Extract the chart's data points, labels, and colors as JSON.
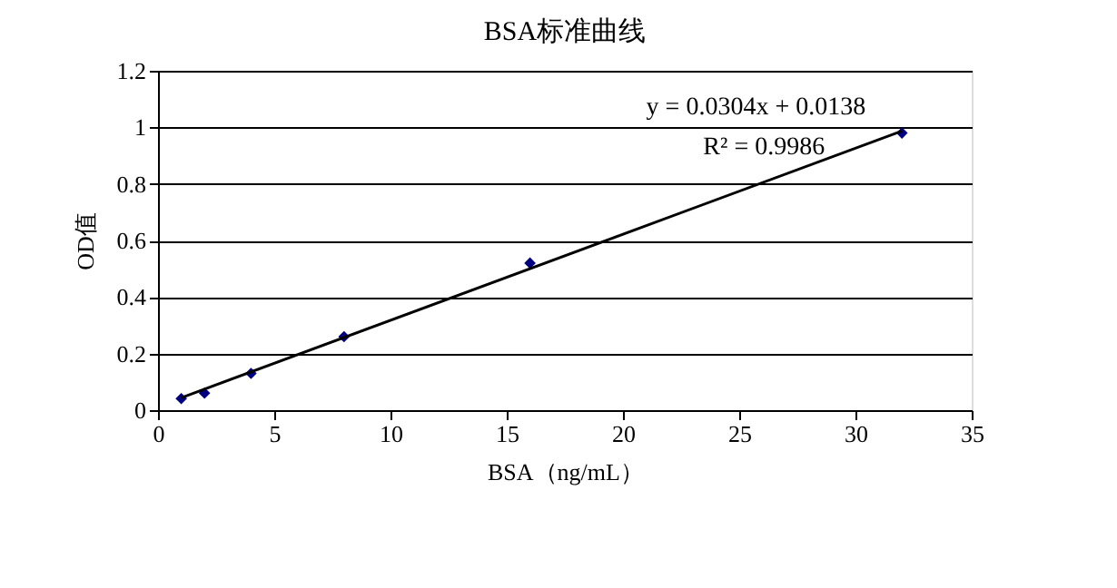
{
  "chart_data": {
    "type": "scatter",
    "title": "BSA标准曲线",
    "xlabel": "BSA（ng/mL）",
    "ylabel": "OD值",
    "series": [
      {
        "color": "#000080",
        "marker": "diamond",
        "x": [
          1,
          2,
          4,
          8,
          16,
          32
        ],
        "values": [
          0.041,
          0.06,
          0.13,
          0.26,
          0.52,
          0.98
        ]
      },
      {
        "type": "line",
        "color": "#000000",
        "line_style": "solid",
        "x": [
          1,
          32
        ],
        "values": [
          0.044,
          0.987
        ]
      }
    ],
    "annotations": [
      "y = 0.0304x + 0.0138",
      "R² = 0.9986"
    ],
    "xlim": [
      0,
      35
    ],
    "xticks": [
      0,
      5,
      10,
      15,
      20,
      25,
      30,
      35
    ],
    "ylim": [
      0,
      1.2
    ],
    "yticks": [
      0,
      0.2,
      0.4,
      0.6,
      0.8,
      1,
      1.2
    ],
    "grid": "y"
  }
}
